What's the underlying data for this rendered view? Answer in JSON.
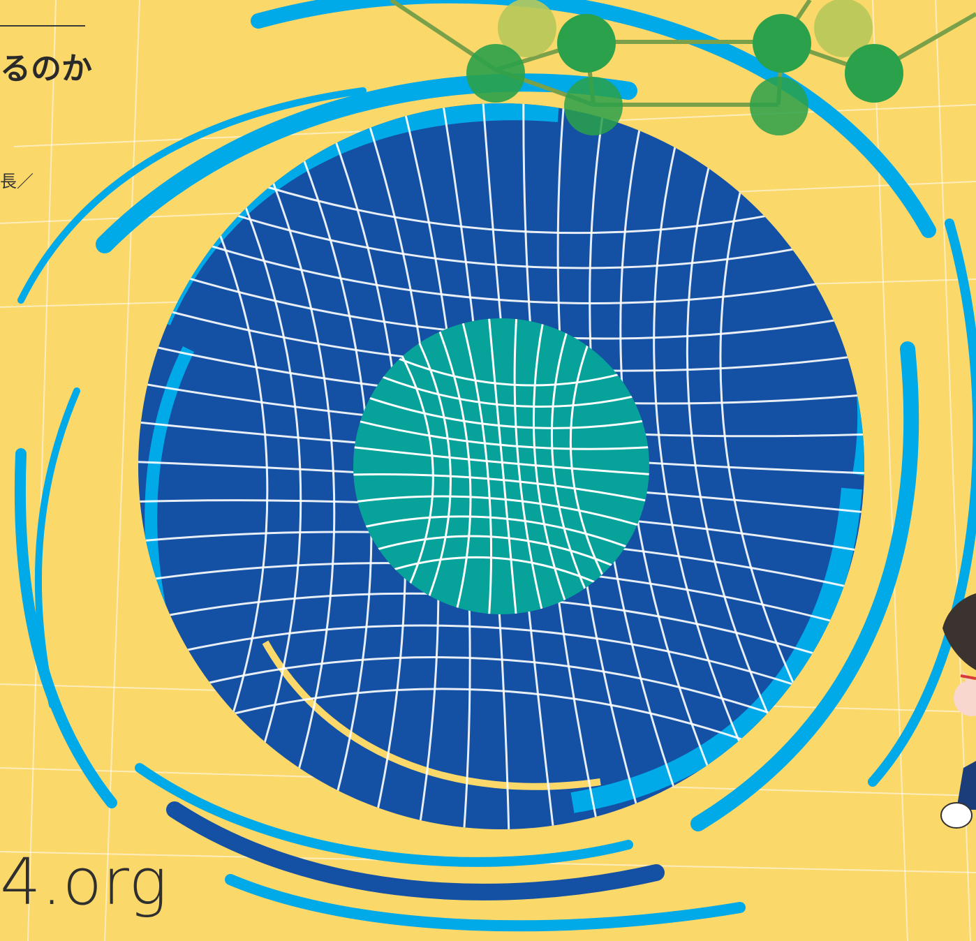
{
  "text": {
    "headline": "るのか",
    "affiliation": "長／",
    "url_fragment": "4.org"
  },
  "colors": {
    "background": "#fbd86a",
    "deep_blue": "#1450a3",
    "light_blue": "#00a9e8",
    "teal": "#07a29a",
    "grid_line": "#ffffff",
    "molecule_green": "#2aa14a",
    "molecule_light": "#b6c95a"
  },
  "illustration": {
    "center_icon": "spiral-spacetime-icon",
    "top_icon": "molecule-network-icon",
    "right_icon": "character-mascot-icon"
  }
}
